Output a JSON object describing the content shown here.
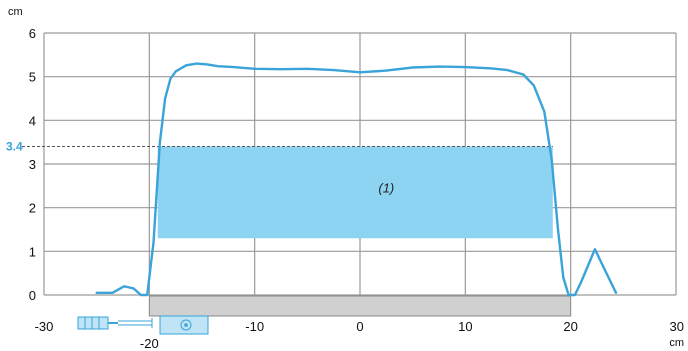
{
  "chart_data": {
    "type": "line",
    "xlabel": "",
    "ylabel": "",
    "x_unit": "cm",
    "y_unit": "cm",
    "xlim": [
      -30,
      30
    ],
    "ylim": [
      0,
      6
    ],
    "x_ticks": [
      {
        "value": -30,
        "label": "-30"
      },
      {
        "value": -20,
        "label": "-20"
      },
      {
        "value": -10,
        "label": "-10"
      },
      {
        "value": 0,
        "label": "0"
      },
      {
        "value": 10,
        "label": "10"
      },
      {
        "value": 20,
        "label": "20"
      },
      {
        "value": 30,
        "label": "30"
      }
    ],
    "y_ticks": [
      {
        "value": 0,
        "label": "0"
      },
      {
        "value": 1,
        "label": "1"
      },
      {
        "value": 2,
        "label": "2"
      },
      {
        "value": 3,
        "label": "3"
      },
      {
        "value": 4,
        "label": "4"
      },
      {
        "value": 5,
        "label": "5"
      },
      {
        "value": 6,
        "label": "6"
      }
    ],
    "grid": true,
    "series": [
      {
        "color": "#3aa3d8",
        "x": [
          -25,
          -23.5,
          -22.4,
          -21.5,
          -20.8,
          -20.2,
          -19.6,
          -19.0,
          -18.5,
          -18.0,
          -17.5,
          -16.5,
          -15.5,
          -14.5,
          -13.5,
          -12.0,
          -10.0,
          -7.5,
          -5.0,
          -2.5,
          0.0,
          2.5,
          5.0,
          7.5,
          10.0,
          12.5,
          14.0,
          15.5,
          16.5,
          17.5,
          18.2,
          18.8,
          19.3,
          19.8,
          20.4,
          21.0,
          22.3,
          23.5,
          24.3
        ],
        "y": [
          0.05,
          0.05,
          0.2,
          0.15,
          0.0,
          0.0,
          1.2,
          3.5,
          4.5,
          4.95,
          5.12,
          5.26,
          5.3,
          5.28,
          5.24,
          5.22,
          5.18,
          5.17,
          5.18,
          5.15,
          5.1,
          5.14,
          5.21,
          5.23,
          5.22,
          5.19,
          5.15,
          5.05,
          4.8,
          4.2,
          3.1,
          1.5,
          0.4,
          0.0,
          0.0,
          0.3,
          1.05,
          0.45,
          0.05
        ]
      }
    ],
    "horizontal_line": {
      "value": 3.4,
      "label": "3.4",
      "color": "#3aa3d8"
    },
    "shaded_band": {
      "x": [
        -19.2,
        18.3
      ],
      "y": [
        1.3,
        3.4
      ],
      "color": "#8dd3f2",
      "label": "(1)"
    },
    "ground_bar": {
      "x": [
        -20,
        20
      ],
      "color": "#d0d0d0"
    }
  }
}
